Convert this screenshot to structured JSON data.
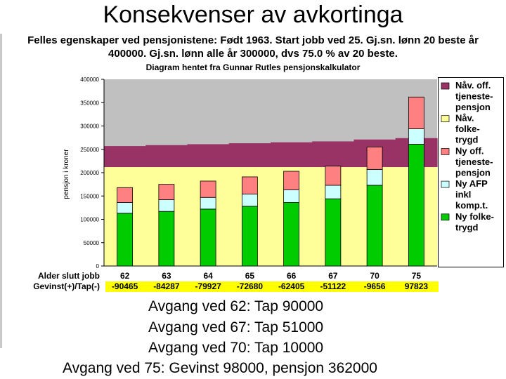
{
  "page": {
    "title": "Konsekvenser av avkortinga",
    "subtitle_lines": [
      "Felles egenskaper ved pensjonistene:  Født 1963. Start jobb ved 25. Gj.sn. lønn 20 beste år",
      "400000. Gj.sn. lønn alle år 300000, dvs 75.0 % av 20 beste."
    ],
    "source": "Diagram hentet fra Gunnar Rutles pensjonskalkulator",
    "takeaways": [
      "Avgang ved 62: Tap 90000",
      "Avgang ved 67: Tap 51000",
      "Avgang ved 70: Tap 10000",
      "Avgang ved 75:  Gevinst 98000, pensjon 362000"
    ]
  },
  "chart_data": {
    "type": "bar",
    "subtype": "stacked",
    "ylabel": "pensjon i kroner",
    "ylim": [
      0,
      400000
    ],
    "yticks": [
      0,
      50000,
      100000,
      150000,
      200000,
      250000,
      300000,
      350000,
      400000
    ],
    "categories": [
      "62",
      "63",
      "64",
      "65",
      "66",
      "67",
      "70",
      "75"
    ],
    "row_labels": {
      "alder": "Alder slutt jobb",
      "gevinst": "Gevinst(+)/Tap(-)"
    },
    "gevinst_tap": [
      "-90465",
      "-84287",
      "-79927",
      "-72680",
      "-62405",
      "-51122",
      "-9656",
      "97823"
    ],
    "background_series": [
      {
        "name": "Nåv. off. tjenestepensjon",
        "legend_label": "Nåv. off. tjeneste-pensjon",
        "color": "#993366",
        "values": [
          45000,
          47000,
          49000,
          51000,
          53000,
          55000,
          59000,
          62000
        ]
      },
      {
        "name": "Nåv. folketrygd",
        "legend_label": "Nåv. folke-trygd",
        "color": "#ffff99",
        "values": [
          212000,
          212000,
          212000,
          212000,
          212000,
          212000,
          212000,
          212000
        ]
      }
    ],
    "series": [
      {
        "name": "Ny folketrygd",
        "legend_label": "Ny folke-trygd",
        "color": "#00cc00",
        "values": [
          113000,
          117000,
          122000,
          128000,
          136000,
          144000,
          173000,
          261000
        ]
      },
      {
        "name": "Ny AFP inkl komp.t.",
        "legend_label": "Ny AFP inkl komp.t.",
        "color": "#ccffff",
        "values": [
          23000,
          25000,
          25000,
          26000,
          27000,
          29000,
          34000,
          33000
        ]
      },
      {
        "name": "Ny off. tjenestepensjon",
        "legend_label": "Ny off. tjeneste-pensjon",
        "color": "#ff8080",
        "values": [
          32000,
          33000,
          35000,
          37000,
          40000,
          41000,
          48000,
          68000
        ]
      }
    ],
    "legend_position": "right",
    "plot_background": "#c0c0c0",
    "gevinst_row_color": "#ffff00"
  }
}
